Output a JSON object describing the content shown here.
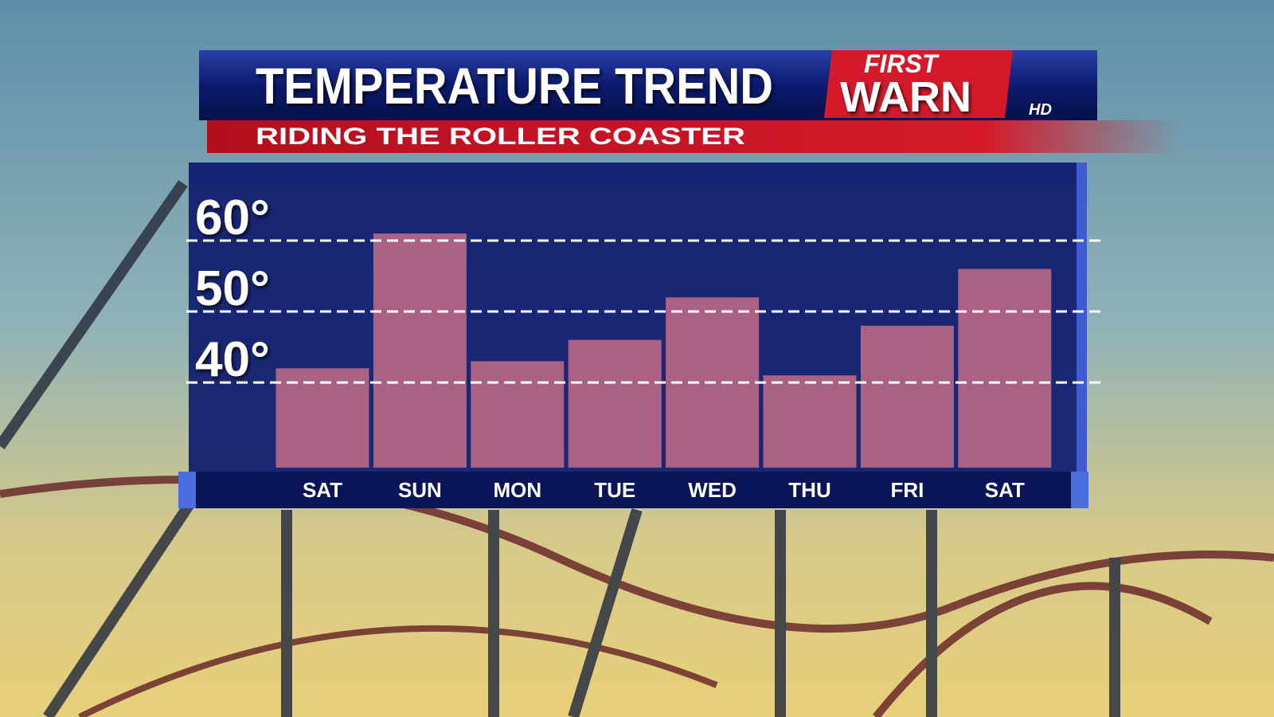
{
  "chart_data": {
    "type": "bar",
    "title": "TEMPERATURE TREND",
    "subtitle": "RIDING THE ROLLER COASTER",
    "logo": {
      "top": "FIRST",
      "main": "WARN",
      "badge": "HD"
    },
    "categories": [
      "SAT",
      "SUN",
      "MON",
      "TUE",
      "WED",
      "THU",
      "FRI",
      "SAT"
    ],
    "values": [
      42,
      61,
      43,
      46,
      52,
      41,
      48,
      56
    ],
    "color": "#e87a8c",
    "ylim": [
      28,
      71
    ],
    "yticks": [
      {
        "value": 40,
        "label": "40°"
      },
      {
        "value": 50,
        "label": "50°"
      },
      {
        "value": 60,
        "label": "60°"
      }
    ],
    "grid": true
  }
}
